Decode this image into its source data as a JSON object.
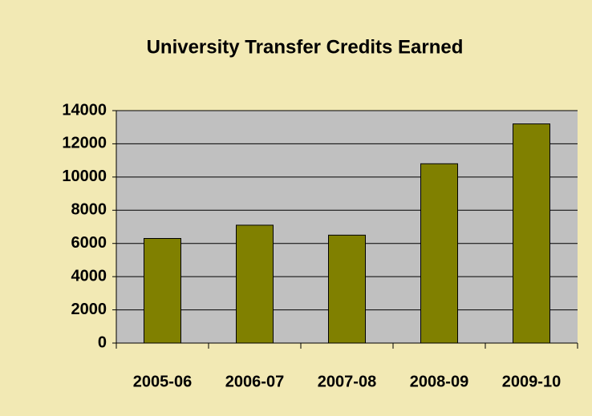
{
  "chart_data": {
    "type": "bar",
    "title": "University Transfer Credits Earned",
    "categories": [
      "2005-06",
      "2006-07",
      "2007-08",
      "2008-09",
      "2009-10"
    ],
    "values": [
      6300,
      7100,
      6500,
      10800,
      13200
    ],
    "color": "#808000",
    "ylim": [
      0,
      14000
    ],
    "yticks": [
      0,
      2000,
      4000,
      6000,
      8000,
      10000,
      12000,
      14000
    ],
    "grid": true
  }
}
